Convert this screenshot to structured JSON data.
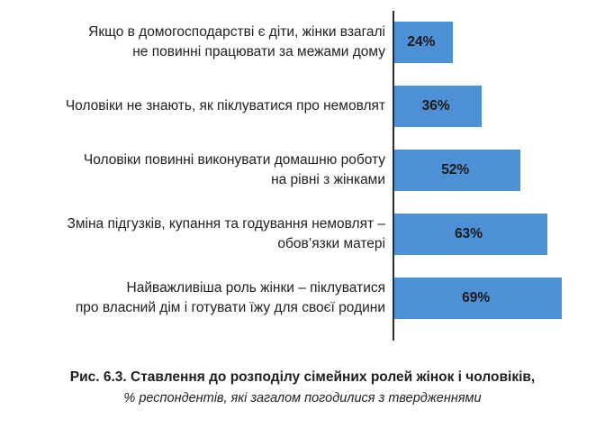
{
  "chart_data": {
    "type": "bar",
    "orientation": "horizontal",
    "categories": [
      "Якщо в домогосподарстві є діти, жінки взагалі\nне повинні працювати за межами дому",
      "Чоловіки не знають, як піклуватися про немовлят",
      "Чоловіки повинні виконувати домашню роботу\nна рівні з жінками",
      "Зміна підгузків, купання та годування немовлят –\nобов’язки матері",
      "Найважливіша роль жінки – піклуватися\nпро власний дім і готувати їжу для своєї родини"
    ],
    "values": [
      24,
      36,
      52,
      63,
      69
    ],
    "value_labels": [
      "24%",
      "36%",
      "52%",
      "63%",
      "69%"
    ],
    "bar_color": "#4e90d6",
    "xlim": [
      0,
      100
    ]
  },
  "caption": {
    "title": "Рис. 6.3. Ставлення до розподілу сімейних ролей жінок і чоловіків,",
    "subtitle": "% респондентів, які загалом погодилися з твердженнями"
  }
}
